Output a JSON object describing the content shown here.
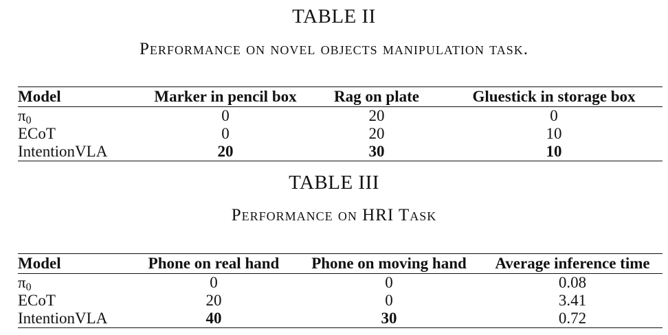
{
  "table2": {
    "label": "TABLE II",
    "caption": "Performance on novel objects manipulation task.",
    "headers": [
      "Model",
      "Marker in pencil box",
      "Rag on plate",
      "Gluestick in storage box"
    ],
    "rows": [
      {
        "model": "π",
        "sub": "0",
        "values": [
          "0",
          "20",
          "0"
        ],
        "bold": [
          false,
          false,
          false
        ]
      },
      {
        "model": "ECoT",
        "sub": "",
        "values": [
          "0",
          "20",
          "10"
        ],
        "bold": [
          false,
          false,
          false
        ]
      },
      {
        "model": "IntentionVLA",
        "sub": "",
        "values": [
          "20",
          "30",
          "10"
        ],
        "bold": [
          true,
          true,
          true
        ]
      }
    ]
  },
  "table3": {
    "label": "TABLE III",
    "caption": "Performance on HRI Task",
    "headers": [
      "Model",
      "Phone on real hand",
      "Phone on moving hand",
      "Average inference time"
    ],
    "rows": [
      {
        "model": "π",
        "sub": "0",
        "values": [
          "0",
          "0",
          "0.08"
        ],
        "bold": [
          false,
          false,
          false
        ]
      },
      {
        "model": "ECoT",
        "sub": "",
        "values": [
          "20",
          "0",
          "3.41"
        ],
        "bold": [
          false,
          false,
          false
        ]
      },
      {
        "model": "IntentionVLA",
        "sub": "",
        "values": [
          "40",
          "30",
          "0.72"
        ],
        "bold": [
          true,
          true,
          false
        ]
      }
    ]
  }
}
